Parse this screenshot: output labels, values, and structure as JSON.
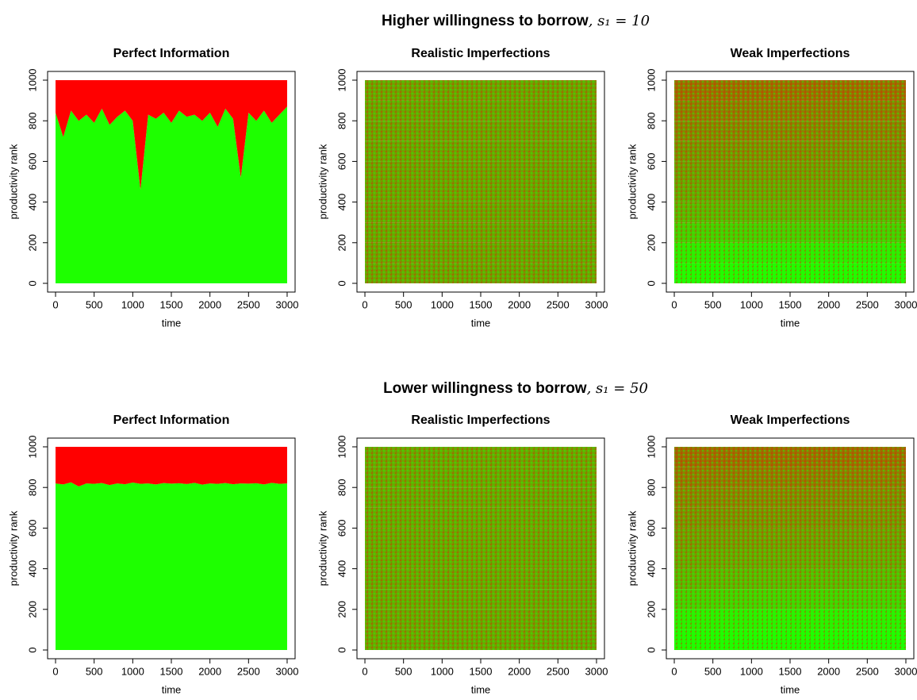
{
  "sections": [
    {
      "title": "Higher willingness to borrow",
      "suffix": ", s₁ = 10"
    },
    {
      "title": "Lower willingness to borrow",
      "suffix": ", s₁ = 50"
    }
  ],
  "chart_data": [
    {
      "type": "area",
      "title": "Perfect Information",
      "xlabel": "time",
      "ylabel": "productivity rank",
      "xlim": [
        -103,
        3103
      ],
      "ylim": [
        -43,
        1043
      ],
      "xticks": [
        0,
        500,
        1000,
        1500,
        2000,
        2500,
        3000
      ],
      "yticks": [
        0,
        200,
        400,
        600,
        800,
        1000
      ],
      "x": [
        0,
        100,
        200,
        300,
        400,
        500,
        600,
        700,
        800,
        900,
        1000,
        1100,
        1200,
        1300,
        1400,
        1500,
        1600,
        1700,
        1800,
        1900,
        2000,
        2100,
        2200,
        2300,
        2400,
        2500,
        2600,
        2700,
        2800,
        2900,
        3000
      ],
      "series": [
        {
          "color": "#1eff00",
          "values": [
            840,
            720,
            850,
            800,
            830,
            790,
            860,
            780,
            820,
            850,
            800,
            460,
            830,
            810,
            840,
            790,
            850,
            820,
            830,
            800,
            840,
            770,
            860,
            810,
            520,
            840,
            800,
            850,
            790,
            830,
            870
          ]
        },
        {
          "color": "#ff0000",
          "values": [
            160,
            280,
            150,
            200,
            170,
            210,
            140,
            220,
            180,
            150,
            200,
            540,
            170,
            190,
            160,
            210,
            150,
            180,
            170,
            200,
            160,
            230,
            140,
            190,
            480,
            160,
            200,
            150,
            210,
            170,
            130
          ]
        }
      ]
    },
    {
      "type": "heatmap",
      "title": "Realistic Imperfections",
      "xlabel": "time",
      "ylabel": "productivity rank",
      "xlim": [
        -103,
        3103
      ],
      "ylim": [
        -43,
        1043
      ],
      "xticks": [
        0,
        500,
        1000,
        1500,
        2000,
        2500,
        3000
      ],
      "yticks": [
        0,
        200,
        400,
        600,
        800,
        1000
      ],
      "time_range": [
        0,
        3000
      ],
      "bands": [
        0,
        100,
        200,
        300,
        400,
        500,
        600,
        700,
        800,
        900,
        1000
      ],
      "colors": [
        "#1eff00",
        "#ff0000"
      ],
      "red_share": [
        0.36,
        0.37,
        0.36,
        0.37,
        0.36,
        0.37,
        0.36,
        0.37,
        0.36,
        0.37
      ]
    },
    {
      "type": "heatmap",
      "title": "Weak Imperfections",
      "xlabel": "time",
      "ylabel": "productivity rank",
      "xlim": [
        -103,
        3103
      ],
      "ylim": [
        -43,
        1043
      ],
      "xticks": [
        0,
        500,
        1000,
        1500,
        2000,
        2500,
        3000
      ],
      "yticks": [
        0,
        200,
        400,
        600,
        800,
        1000
      ],
      "time_range": [
        0,
        3000
      ],
      "bands": [
        0,
        100,
        200,
        300,
        400,
        500,
        600,
        700,
        800,
        900,
        1000
      ],
      "colors": [
        "#1eff00",
        "#ff0000"
      ],
      "red_share": [
        0.02,
        0.08,
        0.2,
        0.3,
        0.36,
        0.4,
        0.44,
        0.47,
        0.5,
        0.55
      ]
    },
    {
      "type": "area",
      "title": "Perfect Information",
      "xlabel": "time",
      "ylabel": "productivity rank",
      "xlim": [
        -103,
        3103
      ],
      "ylim": [
        -43,
        1043
      ],
      "xticks": [
        0,
        500,
        1000,
        1500,
        2000,
        2500,
        3000
      ],
      "yticks": [
        0,
        200,
        400,
        600,
        800,
        1000
      ],
      "x": [
        0,
        100,
        200,
        300,
        400,
        500,
        600,
        700,
        800,
        900,
        1000,
        1100,
        1200,
        1300,
        1400,
        1500,
        1600,
        1700,
        1800,
        1900,
        2000,
        2100,
        2200,
        2300,
        2400,
        2500,
        2600,
        2700,
        2800,
        2900,
        3000
      ],
      "series": [
        {
          "color": "#1eff00",
          "values": [
            820,
            815,
            825,
            805,
            820,
            818,
            822,
            812,
            820,
            816,
            824,
            818,
            820,
            815,
            822,
            819,
            821,
            817,
            823,
            814,
            820,
            818,
            822,
            816,
            820,
            819,
            821,
            815,
            823,
            818,
            820
          ]
        },
        {
          "color": "#ff0000",
          "values": [
            180,
            185,
            175,
            195,
            180,
            182,
            178,
            188,
            180,
            184,
            176,
            182,
            180,
            185,
            178,
            181,
            179,
            183,
            177,
            186,
            180,
            182,
            178,
            184,
            180,
            181,
            179,
            185,
            177,
            182,
            180
          ]
        }
      ]
    },
    {
      "type": "heatmap",
      "title": "Realistic Imperfections",
      "xlabel": "time",
      "ylabel": "productivity rank",
      "xlim": [
        -103,
        3103
      ],
      "ylim": [
        -43,
        1043
      ],
      "xticks": [
        0,
        500,
        1000,
        1500,
        2000,
        2500,
        3000
      ],
      "yticks": [
        0,
        200,
        400,
        600,
        800,
        1000
      ],
      "time_range": [
        0,
        3000
      ],
      "bands": [
        0,
        100,
        200,
        300,
        400,
        500,
        600,
        700,
        800,
        900,
        1000
      ],
      "colors": [
        "#1eff00",
        "#ff0000"
      ],
      "red_share": [
        0.34,
        0.35,
        0.34,
        0.35,
        0.34,
        0.35,
        0.34,
        0.35,
        0.34,
        0.35
      ]
    },
    {
      "type": "heatmap",
      "title": "Weak Imperfections",
      "xlabel": "time",
      "ylabel": "productivity rank",
      "xlim": [
        -103,
        3103
      ],
      "ylim": [
        -43,
        1043
      ],
      "xticks": [
        0,
        500,
        1000,
        1500,
        2000,
        2500,
        3000
      ],
      "yticks": [
        0,
        200,
        400,
        600,
        800,
        1000
      ],
      "time_range": [
        0,
        3000
      ],
      "bands": [
        0,
        100,
        200,
        300,
        400,
        500,
        600,
        700,
        800,
        900,
        1000
      ],
      "colors": [
        "#1eff00",
        "#ff0000"
      ],
      "red_share": [
        0.01,
        0.06,
        0.18,
        0.28,
        0.34,
        0.39,
        0.43,
        0.46,
        0.5,
        0.55
      ]
    }
  ]
}
